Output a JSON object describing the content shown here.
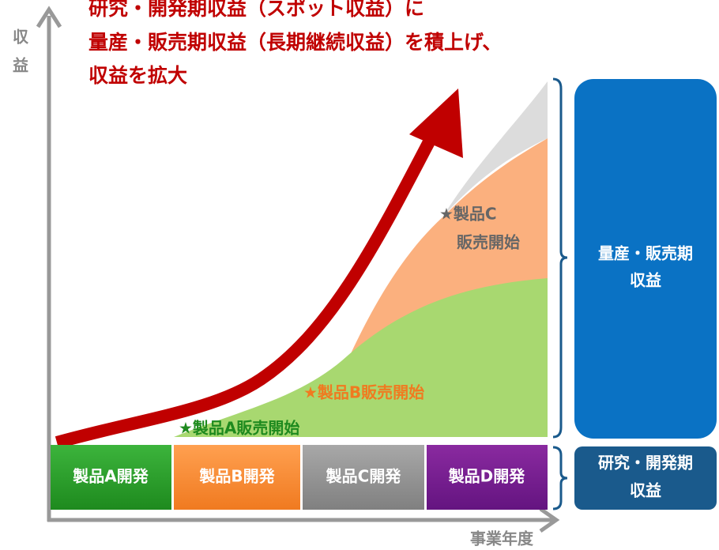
{
  "y_axis_label": [
    "収",
    "益"
  ],
  "title": [
    "研究・開発期収益（スポット収益）に",
    "量産・販売期収益（長期継続収益）を積上げ、",
    "収益を拡大"
  ],
  "milestones": {
    "product_c": [
      "★製品C",
      "販売開始"
    ],
    "product_b": "★製品B販売開始",
    "product_a": "★製品A販売開始"
  },
  "phases": [
    "製品A開発",
    "製品B開発",
    "製品C開発",
    "製品D開発"
  ],
  "brackets": {
    "mass_production": [
      "量産・販売期",
      "収益"
    ],
    "research": [
      "研究・開発期",
      "収益"
    ]
  },
  "x_axis_label": "事業年度"
}
